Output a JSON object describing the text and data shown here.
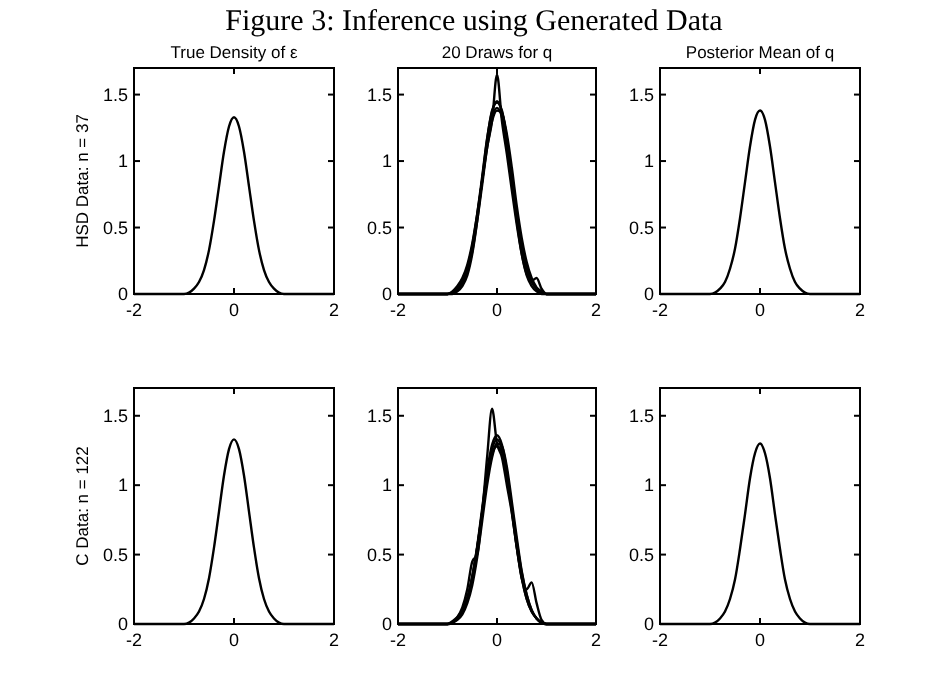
{
  "chart_data": [
    {
      "type": "line",
      "title": "True Density of ε",
      "ylabel": "HSD Data: n = 37",
      "annotations": [
        "Figure 3: Inference using Generated Data"
      ],
      "x": [
        -2,
        -1,
        -0.9,
        -0.8,
        -0.7,
        -0.6,
        -0.5,
        -0.4,
        -0.3,
        -0.2,
        -0.1,
        0,
        0.1,
        0.2,
        0.3,
        0.4,
        0.5,
        0.6,
        0.7,
        0.8,
        0.9,
        1,
        2
      ],
      "xlim": [
        -2,
        2
      ],
      "ylim": [
        0,
        1.7
      ],
      "xticks": [
        -2,
        0,
        2
      ],
      "yticks": [
        0,
        0.5,
        1,
        1.5
      ],
      "series": [
        {
          "color": "#000000",
          "values": [
            0,
            0,
            0.01,
            0.04,
            0.09,
            0.18,
            0.33,
            0.55,
            0.81,
            1.07,
            1.26,
            1.33,
            1.26,
            1.07,
            0.81,
            0.55,
            0.33,
            0.18,
            0.09,
            0.04,
            0.01,
            0,
            0
          ]
        }
      ]
    },
    {
      "type": "line",
      "title": "20 Draws for q",
      "x": [
        -2,
        -1,
        -0.9,
        -0.8,
        -0.7,
        -0.6,
        -0.5,
        -0.4,
        -0.3,
        -0.2,
        -0.1,
        0,
        0.1,
        0.2,
        0.3,
        0.4,
        0.5,
        0.6,
        0.7,
        0.8,
        0.9,
        1,
        2
      ],
      "xlim": [
        -2,
        2
      ],
      "ylim": [
        0,
        1.7
      ],
      "xticks": [
        -2,
        0,
        2
      ],
      "yticks": [
        0,
        0.5,
        1,
        1.5
      ],
      "series": [
        {
          "color": "#000000",
          "values": [
            0,
            0,
            0.01,
            0.04,
            0.1,
            0.2,
            0.36,
            0.6,
            0.88,
            1.17,
            1.37,
            1.45,
            1.37,
            1.17,
            0.88,
            0.6,
            0.36,
            0.2,
            0.1,
            0.04,
            0.01,
            0,
            0
          ]
        },
        {
          "color": "#000000",
          "values": [
            0,
            0,
            0.01,
            0.04,
            0.09,
            0.19,
            0.35,
            0.58,
            0.85,
            1.13,
            1.33,
            1.4,
            1.33,
            1.13,
            0.85,
            0.58,
            0.35,
            0.19,
            0.09,
            0.04,
            0.01,
            0,
            0
          ]
        },
        {
          "color": "#000000",
          "values": [
            0,
            0,
            0.02,
            0.06,
            0.12,
            0.22,
            0.38,
            0.6,
            0.85,
            1.1,
            1.3,
            1.38,
            1.36,
            1.2,
            0.95,
            0.66,
            0.42,
            0.24,
            0.12,
            0.05,
            0.02,
            0,
            0
          ]
        },
        {
          "color": "#000000",
          "values": [
            0,
            0,
            0.01,
            0.03,
            0.08,
            0.17,
            0.32,
            0.55,
            0.82,
            1.1,
            1.3,
            1.65,
            1.3,
            1.05,
            0.78,
            0.52,
            0.3,
            0.15,
            0.1,
            0.12,
            0.04,
            0,
            0
          ]
        },
        {
          "color": "#000000",
          "values": [
            0,
            0,
            0,
            0.02,
            0.06,
            0.14,
            0.3,
            0.55,
            0.86,
            1.16,
            1.38,
            1.44,
            1.38,
            1.16,
            0.86,
            0.55,
            0.3,
            0.14,
            0.06,
            0.02,
            0,
            0,
            0
          ]
        }
      ]
    },
    {
      "type": "line",
      "title": "Posterior Mean of q",
      "x": [
        -2,
        -1,
        -0.9,
        -0.8,
        -0.7,
        -0.6,
        -0.5,
        -0.4,
        -0.3,
        -0.2,
        -0.1,
        0,
        0.1,
        0.2,
        0.3,
        0.4,
        0.5,
        0.6,
        0.7,
        0.8,
        0.9,
        1,
        2
      ],
      "xlim": [
        -2,
        2
      ],
      "ylim": [
        0,
        1.7
      ],
      "xticks": [
        -2,
        0,
        2
      ],
      "yticks": [
        0,
        0.5,
        1,
        1.5
      ],
      "series": [
        {
          "color": "#000000",
          "values": [
            0,
            0,
            0.01,
            0.04,
            0.09,
            0.19,
            0.34,
            0.57,
            0.84,
            1.11,
            1.31,
            1.38,
            1.31,
            1.11,
            0.84,
            0.57,
            0.34,
            0.19,
            0.09,
            0.04,
            0.01,
            0,
            0
          ]
        }
      ]
    },
    {
      "type": "line",
      "ylabel": "C Data: n = 122",
      "x": [
        -2,
        -1,
        -0.9,
        -0.8,
        -0.7,
        -0.6,
        -0.5,
        -0.4,
        -0.3,
        -0.2,
        -0.1,
        0,
        0.1,
        0.2,
        0.3,
        0.4,
        0.5,
        0.6,
        0.7,
        0.8,
        0.9,
        1,
        2
      ],
      "xlim": [
        -2,
        2
      ],
      "ylim": [
        0,
        1.7
      ],
      "xticks": [
        -2,
        0,
        2
      ],
      "yticks": [
        0,
        0.5,
        1,
        1.5
      ],
      "series": [
        {
          "color": "#000000",
          "values": [
            0,
            0,
            0.01,
            0.04,
            0.09,
            0.18,
            0.33,
            0.55,
            0.81,
            1.07,
            1.26,
            1.33,
            1.26,
            1.07,
            0.81,
            0.55,
            0.33,
            0.18,
            0.09,
            0.04,
            0.01,
            0,
            0
          ]
        }
      ]
    },
    {
      "type": "line",
      "x": [
        -2,
        -1,
        -0.9,
        -0.8,
        -0.7,
        -0.6,
        -0.5,
        -0.4,
        -0.3,
        -0.2,
        -0.1,
        0,
        0.1,
        0.2,
        0.3,
        0.4,
        0.5,
        0.6,
        0.7,
        0.8,
        0.9,
        1,
        2
      ],
      "xlim": [
        -2,
        2
      ],
      "ylim": [
        0,
        1.7
      ],
      "xticks": [
        -2,
        0,
        2
      ],
      "yticks": [
        0,
        0.5,
        1,
        1.5
      ],
      "series": [
        {
          "color": "#000000",
          "values": [
            0,
            0,
            0.01,
            0.04,
            0.09,
            0.18,
            0.33,
            0.55,
            0.81,
            1.07,
            1.26,
            1.33,
            1.26,
            1.07,
            0.81,
            0.55,
            0.33,
            0.18,
            0.09,
            0.04,
            0.01,
            0,
            0
          ]
        },
        {
          "color": "#000000",
          "values": [
            0,
            0,
            0.01,
            0.03,
            0.07,
            0.15,
            0.28,
            0.48,
            0.74,
            1.0,
            1.2,
            1.3,
            1.28,
            1.13,
            0.88,
            0.62,
            0.38,
            0.21,
            0.1,
            0.04,
            0.01,
            0,
            0
          ]
        },
        {
          "color": "#000000",
          "values": [
            0,
            0,
            0.01,
            0.04,
            0.09,
            0.18,
            0.34,
            0.56,
            0.83,
            1.1,
            1.29,
            1.36,
            1.29,
            1.1,
            0.83,
            0.56,
            0.34,
            0.18,
            0.09,
            0.04,
            0.01,
            0,
            0
          ]
        },
        {
          "color": "#000000",
          "values": [
            0,
            0,
            0.01,
            0.05,
            0.12,
            0.25,
            0.45,
            0.5,
            0.8,
            1.2,
            1.55,
            1.3,
            1.2,
            1.0,
            0.8,
            0.55,
            0.33,
            0.25,
            0.3,
            0.15,
            0.03,
            0,
            0
          ]
        },
        {
          "color": "#000000",
          "values": [
            0,
            0,
            0.02,
            0.05,
            0.1,
            0.19,
            0.34,
            0.55,
            0.8,
            1.05,
            1.22,
            1.28,
            1.24,
            1.08,
            0.84,
            0.59,
            0.37,
            0.21,
            0.1,
            0.04,
            0.01,
            0,
            0
          ]
        }
      ]
    },
    {
      "type": "line",
      "x": [
        -2,
        -1,
        -0.9,
        -0.8,
        -0.7,
        -0.6,
        -0.5,
        -0.4,
        -0.3,
        -0.2,
        -0.1,
        0,
        0.1,
        0.2,
        0.3,
        0.4,
        0.5,
        0.6,
        0.7,
        0.8,
        0.9,
        1,
        2
      ],
      "xlim": [
        -2,
        2
      ],
      "ylim": [
        0,
        1.7
      ],
      "xticks": [
        -2,
        0,
        2
      ],
      "yticks": [
        0,
        0.5,
        1,
        1.5
      ],
      "series": [
        {
          "color": "#000000",
          "values": [
            0,
            0,
            0.01,
            0.04,
            0.09,
            0.18,
            0.32,
            0.54,
            0.79,
            1.05,
            1.23,
            1.3,
            1.23,
            1.05,
            0.79,
            0.54,
            0.32,
            0.18,
            0.09,
            0.04,
            0.01,
            0,
            0
          ]
        }
      ]
    }
  ]
}
